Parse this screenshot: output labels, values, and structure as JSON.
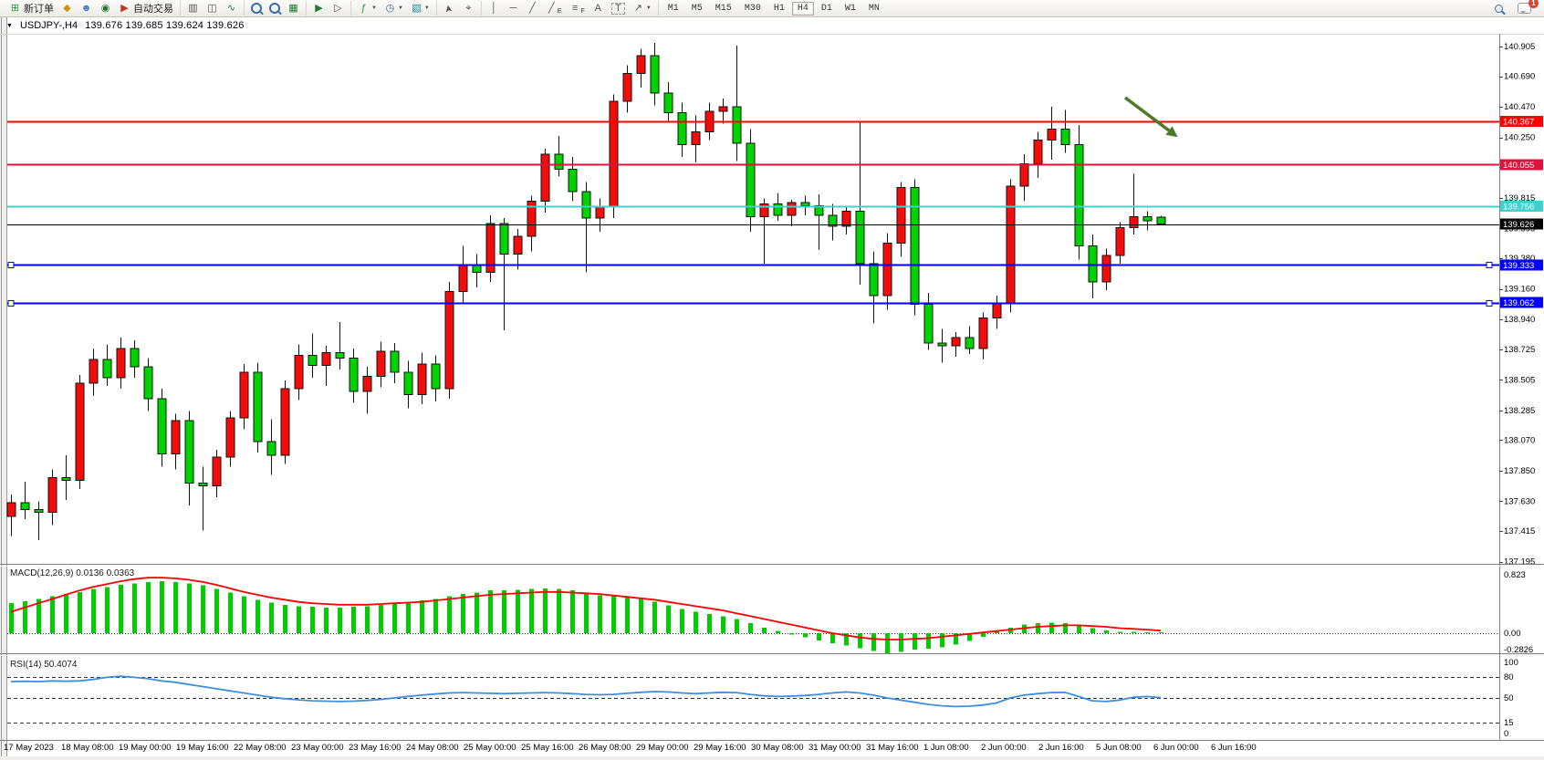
{
  "toolbar": {
    "new_order_label": "新订单",
    "autotrade_label": "自动交易",
    "notification_count": "1",
    "channel_sub": "E",
    "fibo_sub": "F",
    "timeframes": [
      "M1",
      "M5",
      "M15",
      "M30",
      "H1",
      "H4",
      "D1",
      "W1",
      "MN"
    ],
    "active_timeframe": "H4",
    "icons": {
      "new_order": "⊞",
      "ink_bucket": "◆",
      "profiles": "☻",
      "signal": "◉",
      "autotrade": "▶",
      "bar_chart": "▥",
      "candle_chart": "◫",
      "line_chart": "∿",
      "tile_windows": "▦",
      "auto_scroll": "▶",
      "chart_shift": "▷",
      "indicators": "ƒ",
      "periods": "◷",
      "templates": "▧",
      "cursor": "➤",
      "crosshair": "⌖",
      "vline": "│",
      "hline": "─",
      "trendline": "╱",
      "channel": "╱",
      "fibo": "≡",
      "text": "A",
      "label": "T",
      "arrows": "↗",
      "caret": "▼",
      "menu": "▼"
    }
  },
  "chart": {
    "menu_glyph": "▼",
    "title_symbol": "USDJPY-,H4",
    "title_ohlc": "139.676 139.685 139.624 139.626"
  },
  "price_axis": {
    "ticks": [
      "140.905",
      "140.690",
      "140.470",
      "140.250",
      "140.035",
      "139.815",
      "139.595",
      "139.380",
      "139.160",
      "138.940",
      "138.725",
      "138.505",
      "138.285",
      "138.070",
      "137.850",
      "137.630",
      "137.415",
      "137.195"
    ]
  },
  "lines": [
    {
      "price": 140.367,
      "label": "140.367",
      "color": "#FF0000",
      "width": 2,
      "handles": false
    },
    {
      "price": 140.055,
      "label": "140.055",
      "color": "#DC143C",
      "width": 2,
      "handles": false
    },
    {
      "price": 139.756,
      "label": "139.756",
      "color": "#3FD0D0",
      "width": 2,
      "handles": false
    },
    {
      "price": 139.333,
      "label": "139.333",
      "color": "#0000FF",
      "width": 2,
      "handles": true
    },
    {
      "price": 139.062,
      "label": "139.062",
      "color": "#0000FF",
      "width": 2,
      "handles": true
    }
  ],
  "current_price": {
    "value": 139.626,
    "label": "139.626",
    "color": "#000000"
  },
  "annotation": {
    "arrow_color": "#4C7A28",
    "from": [
      1233,
      107
    ],
    "to": [
      1281,
      143
    ]
  },
  "chart_data": {
    "type": "candlestick",
    "symbol": "USDJPY-",
    "timeframe": "H4",
    "bull_color": "#F20C0C",
    "bear_color": "#00D400",
    "wick_color": "#111111",
    "ylim": [
      137.195,
      140.905
    ],
    "time_labels": [
      "17 May 2023",
      "18 May 08:00",
      "19 May 00:00",
      "19 May 16:00",
      "22 May 08:00",
      "23 May 00:00",
      "23 May 16:00",
      "24 May 08:00",
      "25 May 00:00",
      "25 May 16:00",
      "26 May 08:00",
      "29 May 00:00",
      "29 May 16:00",
      "30 May 08:00",
      "31 May 00:00",
      "31 May 16:00",
      "1 Jun 08:00",
      "2 Jun 00:00",
      "2 Jun 16:00",
      "5 Jun 08:00",
      "6 Jun 00:00",
      "6 Jun 16:00"
    ],
    "candles": [
      [
        137.52,
        137.68,
        137.38,
        137.62
      ],
      [
        137.62,
        137.77,
        137.5,
        137.57
      ],
      [
        137.57,
        137.63,
        137.35,
        137.55
      ],
      [
        137.55,
        137.86,
        137.46,
        137.8
      ],
      [
        137.8,
        137.96,
        137.64,
        137.78
      ],
      [
        137.78,
        138.54,
        137.72,
        138.48
      ],
      [
        138.48,
        138.73,
        138.39,
        138.65
      ],
      [
        138.65,
        138.76,
        138.46,
        138.52
      ],
      [
        138.52,
        138.81,
        138.44,
        138.73
      ],
      [
        138.73,
        138.79,
        138.52,
        138.6
      ],
      [
        138.6,
        138.66,
        138.28,
        138.37
      ],
      [
        138.37,
        138.44,
        137.88,
        137.97
      ],
      [
        137.97,
        138.26,
        137.86,
        138.21
      ],
      [
        138.21,
        138.28,
        137.6,
        137.76
      ],
      [
        137.76,
        137.88,
        137.42,
        137.74
      ],
      [
        137.74,
        138.0,
        137.66,
        137.95
      ],
      [
        137.95,
        138.28,
        137.88,
        138.23
      ],
      [
        138.23,
        138.62,
        138.15,
        138.56
      ],
      [
        138.56,
        138.63,
        137.98,
        138.06
      ],
      [
        138.06,
        138.22,
        137.82,
        137.96
      ],
      [
        137.96,
        138.5,
        137.9,
        138.44
      ],
      [
        138.44,
        138.76,
        138.36,
        138.68
      ],
      [
        138.68,
        138.84,
        138.52,
        138.61
      ],
      [
        138.61,
        138.75,
        138.46,
        138.7
      ],
      [
        138.7,
        138.92,
        138.58,
        138.66
      ],
      [
        138.66,
        138.73,
        138.34,
        138.42
      ],
      [
        138.42,
        138.6,
        138.26,
        138.53
      ],
      [
        138.53,
        138.78,
        138.45,
        138.71
      ],
      [
        138.71,
        138.77,
        138.48,
        138.56
      ],
      [
        138.56,
        138.64,
        138.3,
        138.4
      ],
      [
        138.4,
        138.7,
        138.33,
        138.62
      ],
      [
        138.62,
        138.68,
        138.35,
        138.44
      ],
      [
        138.44,
        139.21,
        138.37,
        139.14
      ],
      [
        139.14,
        139.47,
        139.05,
        139.33
      ],
      [
        139.33,
        139.41,
        139.17,
        139.28
      ],
      [
        139.28,
        139.69,
        139.21,
        139.63
      ],
      [
        139.63,
        139.67,
        138.86,
        139.41
      ],
      [
        139.41,
        139.59,
        139.3,
        139.54
      ],
      [
        139.54,
        139.83,
        139.43,
        139.79
      ],
      [
        139.79,
        140.17,
        139.71,
        140.13
      ],
      [
        140.13,
        140.26,
        139.97,
        140.02
      ],
      [
        140.02,
        140.11,
        139.79,
        139.86
      ],
      [
        139.86,
        139.93,
        139.28,
        139.67
      ],
      [
        139.67,
        139.81,
        139.57,
        139.75
      ],
      [
        139.75,
        140.56,
        139.67,
        140.51
      ],
      [
        140.51,
        140.77,
        140.43,
        140.71
      ],
      [
        140.71,
        140.89,
        140.61,
        140.84
      ],
      [
        140.84,
        140.93,
        140.48,
        140.57
      ],
      [
        140.57,
        140.65,
        140.36,
        140.43
      ],
      [
        140.43,
        140.5,
        140.11,
        140.2
      ],
      [
        140.2,
        140.41,
        140.07,
        140.29
      ],
      [
        140.29,
        140.5,
        140.23,
        140.44
      ],
      [
        140.44,
        140.53,
        140.35,
        140.47
      ],
      [
        140.47,
        140.91,
        140.08,
        140.21
      ],
      [
        140.21,
        140.31,
        139.57,
        139.68
      ],
      [
        139.68,
        139.81,
        139.34,
        139.77
      ],
      [
        139.77,
        139.85,
        139.65,
        139.69
      ],
      [
        139.69,
        139.8,
        139.61,
        139.78
      ],
      [
        139.78,
        139.83,
        139.69,
        139.76
      ],
      [
        139.76,
        139.84,
        139.44,
        139.69
      ],
      [
        139.69,
        139.77,
        139.51,
        139.61
      ],
      [
        139.61,
        139.75,
        139.55,
        139.72
      ],
      [
        139.72,
        140.36,
        139.19,
        139.34
      ],
      [
        139.34,
        139.43,
        138.91,
        139.11
      ],
      [
        139.11,
        139.56,
        139.01,
        139.49
      ],
      [
        139.49,
        139.93,
        139.39,
        139.89
      ],
      [
        139.89,
        139.95,
        138.97,
        139.05
      ],
      [
        139.05,
        139.13,
        138.72,
        138.77
      ],
      [
        138.77,
        138.87,
        138.63,
        138.75
      ],
      [
        138.75,
        138.85,
        138.67,
        138.81
      ],
      [
        138.81,
        138.89,
        138.69,
        138.73
      ],
      [
        138.73,
        138.99,
        138.65,
        138.95
      ],
      [
        138.95,
        139.11,
        138.87,
        139.06
      ],
      [
        139.06,
        139.95,
        138.99,
        139.9
      ],
      [
        139.9,
        140.13,
        139.79,
        140.06
      ],
      [
        140.06,
        140.29,
        139.96,
        140.23
      ],
      [
        140.23,
        140.47,
        140.09,
        140.31
      ],
      [
        140.31,
        140.45,
        140.14,
        140.2
      ],
      [
        140.2,
        140.34,
        139.37,
        139.47
      ],
      [
        139.47,
        139.55,
        139.09,
        139.21
      ],
      [
        139.21,
        139.45,
        139.15,
        139.4
      ],
      [
        139.4,
        139.64,
        139.34,
        139.6
      ],
      [
        139.6,
        139.99,
        139.55,
        139.68
      ],
      [
        139.68,
        139.72,
        139.58,
        139.65
      ],
      [
        139.676,
        139.685,
        139.624,
        139.626
      ]
    ],
    "indicators": {
      "macd": {
        "label": "MACD(12,26,9)",
        "values_label": "0.0136 0.0363",
        "axis_labels": [
          "0.823",
          "0.00",
          "-0.2826"
        ],
        "hist_color": "#00CC00",
        "signal_color": "#FF0000",
        "histogram": [
          0.42,
          0.45,
          0.48,
          0.52,
          0.55,
          0.58,
          0.62,
          0.65,
          0.68,
          0.7,
          0.72,
          0.73,
          0.72,
          0.7,
          0.67,
          0.62,
          0.57,
          0.52,
          0.47,
          0.43,
          0.4,
          0.38,
          0.37,
          0.36,
          0.36,
          0.37,
          0.38,
          0.4,
          0.42,
          0.44,
          0.46,
          0.48,
          0.52,
          0.55,
          0.57,
          0.6,
          0.6,
          0.61,
          0.62,
          0.63,
          0.62,
          0.6,
          0.57,
          0.53,
          0.52,
          0.5,
          0.48,
          0.44,
          0.39,
          0.34,
          0.3,
          0.27,
          0.24,
          0.2,
          0.14,
          0.08,
          0.03,
          -0.02,
          -0.06,
          -0.1,
          -0.14,
          -0.17,
          -0.21,
          -0.25,
          -0.28,
          -0.26,
          -0.23,
          -0.22,
          -0.2,
          -0.16,
          -0.11,
          -0.05,
          0.02,
          0.08,
          0.12,
          0.14,
          0.15,
          0.14,
          0.11,
          0.07,
          0.04,
          0.02,
          0.02,
          0.015,
          0.0136
        ],
        "signal": [
          0.3,
          0.36,
          0.42,
          0.48,
          0.54,
          0.6,
          0.65,
          0.69,
          0.73,
          0.76,
          0.78,
          0.78,
          0.77,
          0.75,
          0.72,
          0.68,
          0.63,
          0.58,
          0.54,
          0.5,
          0.47,
          0.44,
          0.42,
          0.41,
          0.4,
          0.4,
          0.4,
          0.41,
          0.42,
          0.43,
          0.44,
          0.46,
          0.48,
          0.5,
          0.52,
          0.54,
          0.55,
          0.56,
          0.57,
          0.58,
          0.58,
          0.57,
          0.56,
          0.55,
          0.53,
          0.51,
          0.49,
          0.47,
          0.44,
          0.41,
          0.38,
          0.35,
          0.32,
          0.28,
          0.24,
          0.2,
          0.16,
          0.12,
          0.08,
          0.04,
          0.0,
          -0.03,
          -0.06,
          -0.08,
          -0.09,
          -0.09,
          -0.08,
          -0.07,
          -0.05,
          -0.03,
          -0.01,
          0.01,
          0.03,
          0.05,
          0.07,
          0.09,
          0.1,
          0.11,
          0.11,
          0.1,
          0.09,
          0.07,
          0.06,
          0.05,
          0.0363
        ]
      },
      "rsi": {
        "label": "RSI(14)",
        "value_label": "50.4074",
        "axis_labels": [
          "100",
          "80",
          "50",
          "15",
          "0"
        ],
        "levels": [
          80,
          50,
          15
        ],
        "color": "#3E8EDE",
        "values": [
          73,
          73.5,
          73,
          74,
          73.5,
          74,
          76,
          79,
          80.5,
          79,
          77,
          74,
          72,
          69,
          66,
          63,
          60,
          57,
          54,
          51,
          49,
          47.5,
          46,
          45.5,
          45,
          45.5,
          46.5,
          48,
          50,
          52,
          54,
          55.5,
          57,
          57.5,
          57,
          56.5,
          56,
          56.5,
          57,
          57.5,
          57,
          56,
          55,
          54.5,
          55,
          56.5,
          58,
          59,
          58.5,
          57,
          56,
          57,
          58,
          57.5,
          55,
          53,
          52,
          52.5,
          53.5,
          55,
          57,
          58.5,
          57,
          54,
          50,
          47,
          44,
          41,
          39,
          38,
          38.5,
          40,
          43,
          50,
          54,
          56,
          57.5,
          58,
          52,
          46,
          45,
          47,
          51,
          52,
          50.4
        ]
      }
    }
  }
}
